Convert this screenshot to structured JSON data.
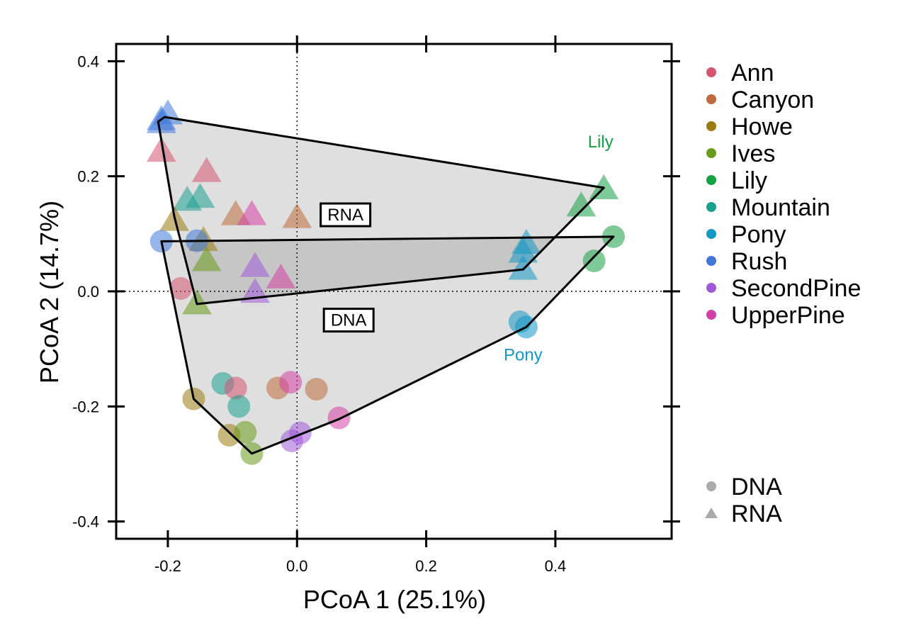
{
  "chart_data": {
    "type": "scatter",
    "title": "",
    "xlabel": "PCoA 1 (25.1%)",
    "ylabel": "PCoA 2 (14.7%)",
    "xlim": [
      -0.28,
      0.58
    ],
    "ylim": [
      -0.43,
      0.43
    ],
    "xticks": [
      -0.2,
      0.0,
      0.2,
      0.4
    ],
    "yticks": [
      -0.4,
      0.2,
      0.0,
      -0.2,
      0.4
    ],
    "xtick_labels": [
      "-0.2",
      "0.0",
      "0.2",
      "0.4"
    ],
    "ytick_labels": [
      "-0.4",
      "0.2",
      "0.0",
      "-0.2",
      "0.4"
    ],
    "reference_lines": {
      "x": 0,
      "y": 0,
      "style": "dotted"
    },
    "grid": false,
    "legend_placement": "right",
    "sites": [
      {
        "name": "Ann",
        "color": "#D6546E"
      },
      {
        "name": "Canyon",
        "color": "#BE6A3A"
      },
      {
        "name": "Howe",
        "color": "#9A7B10"
      },
      {
        "name": "Ives",
        "color": "#6A9A1A"
      },
      {
        "name": "Lily",
        "color": "#14A046"
      },
      {
        "name": "Mountain",
        "color": "#1BA090"
      },
      {
        "name": "Pony",
        "color": "#1498C4"
      },
      {
        "name": "Rush",
        "color": "#3E78DA"
      },
      {
        "name": "SecondPine",
        "color": "#A05AD8"
      },
      {
        "name": "UpperPine",
        "color": "#D63FA6"
      }
    ],
    "types": [
      {
        "name": "DNA",
        "shape": "circle"
      },
      {
        "name": "RNA",
        "shape": "triangle"
      }
    ],
    "points": [
      {
        "site": "Rush",
        "type": "RNA",
        "x": -0.21,
        "y": 0.3
      },
      {
        "site": "Rush",
        "type": "RNA",
        "x": -0.2,
        "y": 0.31
      },
      {
        "site": "Rush",
        "type": "RNA",
        "x": -0.21,
        "y": 0.295
      },
      {
        "site": "Ann",
        "type": "RNA",
        "x": -0.21,
        "y": 0.245
      },
      {
        "site": "Ann",
        "type": "RNA",
        "x": -0.14,
        "y": 0.21
      },
      {
        "site": "Mountain",
        "type": "RNA",
        "x": -0.17,
        "y": 0.16
      },
      {
        "site": "Mountain",
        "type": "RNA",
        "x": -0.15,
        "y": 0.165
      },
      {
        "site": "Howe",
        "type": "RNA",
        "x": -0.19,
        "y": 0.125
      },
      {
        "site": "Canyon",
        "type": "RNA",
        "x": -0.095,
        "y": 0.135
      },
      {
        "site": "UpperPine",
        "type": "RNA",
        "x": -0.07,
        "y": 0.135
      },
      {
        "site": "Canyon",
        "type": "RNA",
        "x": 0.0,
        "y": 0.13
      },
      {
        "site": "Howe",
        "type": "RNA",
        "x": -0.145,
        "y": 0.09
      },
      {
        "site": "Ives",
        "type": "RNA",
        "x": -0.14,
        "y": 0.055
      },
      {
        "site": "SecondPine",
        "type": "RNA",
        "x": -0.065,
        "y": 0.045
      },
      {
        "site": "UpperPine",
        "type": "RNA",
        "x": -0.025,
        "y": 0.025
      },
      {
        "site": "SecondPine",
        "type": "RNA",
        "x": -0.065,
        "y": 0.0
      },
      {
        "site": "Ives",
        "type": "RNA",
        "x": -0.155,
        "y": -0.02
      },
      {
        "site": "Lily",
        "type": "RNA",
        "x": 0.475,
        "y": 0.18
      },
      {
        "site": "Lily",
        "type": "RNA",
        "x": 0.44,
        "y": 0.15
      },
      {
        "site": "Pony",
        "type": "RNA",
        "x": 0.355,
        "y": 0.085
      },
      {
        "site": "Pony",
        "type": "RNA",
        "x": 0.35,
        "y": 0.07
      },
      {
        "site": "Pony",
        "type": "RNA",
        "x": 0.35,
        "y": 0.04
      },
      {
        "site": "Rush",
        "type": "DNA",
        "x": -0.21,
        "y": 0.087
      },
      {
        "site": "Rush",
        "type": "DNA",
        "x": -0.155,
        "y": 0.088
      },
      {
        "site": "Ann",
        "type": "DNA",
        "x": -0.18,
        "y": 0.005
      },
      {
        "site": "Lily",
        "type": "DNA",
        "x": 0.49,
        "y": 0.095
      },
      {
        "site": "Lily",
        "type": "DNA",
        "x": 0.46,
        "y": 0.053
      },
      {
        "site": "Pony",
        "type": "DNA",
        "x": 0.345,
        "y": -0.053
      },
      {
        "site": "Pony",
        "type": "DNA",
        "x": 0.355,
        "y": -0.062
      },
      {
        "site": "Howe",
        "type": "DNA",
        "x": -0.16,
        "y": -0.187
      },
      {
        "site": "Mountain",
        "type": "DNA",
        "x": -0.115,
        "y": -0.16
      },
      {
        "site": "Ann",
        "type": "DNA",
        "x": -0.095,
        "y": -0.168
      },
      {
        "site": "Mountain",
        "type": "DNA",
        "x": -0.09,
        "y": -0.2
      },
      {
        "site": "Canyon",
        "type": "DNA",
        "x": -0.03,
        "y": -0.168
      },
      {
        "site": "UpperPine",
        "type": "DNA",
        "x": -0.01,
        "y": -0.158
      },
      {
        "site": "Canyon",
        "type": "DNA",
        "x": 0.03,
        "y": -0.17
      },
      {
        "site": "UpperPine",
        "type": "DNA",
        "x": 0.065,
        "y": -0.22
      },
      {
        "site": "Howe",
        "type": "DNA",
        "x": -0.105,
        "y": -0.25
      },
      {
        "site": "Ives",
        "type": "DNA",
        "x": -0.08,
        "y": -0.245
      },
      {
        "site": "Ives",
        "type": "DNA",
        "x": -0.07,
        "y": -0.282
      },
      {
        "site": "SecondPine",
        "type": "DNA",
        "x": 0.005,
        "y": -0.246
      },
      {
        "site": "SecondPine",
        "type": "DNA",
        "x": -0.008,
        "y": -0.26
      }
    ],
    "hulls": [
      {
        "name": "RNA",
        "label": "RNA",
        "label_pos": [
          0.075,
          0.133
        ],
        "vertices": [
          [
            -0.215,
            0.295
          ],
          [
            -0.205,
            0.303
          ],
          [
            0.475,
            0.18
          ],
          [
            0.35,
            0.038
          ],
          [
            -0.155,
            -0.022
          ],
          [
            -0.19,
            0.13
          ]
        ]
      },
      {
        "name": "DNA",
        "label": "DNA",
        "label_pos": [
          0.08,
          -0.05
        ],
        "vertices": [
          [
            -0.21,
            0.087
          ],
          [
            0.49,
            0.095
          ],
          [
            0.355,
            -0.062
          ],
          [
            0.065,
            -0.222
          ],
          [
            -0.07,
            -0.282
          ],
          [
            -0.16,
            -0.187
          ]
        ]
      }
    ],
    "annotations": [
      {
        "text": "Lily",
        "x": 0.47,
        "y": 0.25,
        "site": "Lily"
      },
      {
        "text": "Pony",
        "x": 0.35,
        "y": -0.12,
        "site": "Pony"
      }
    ]
  }
}
